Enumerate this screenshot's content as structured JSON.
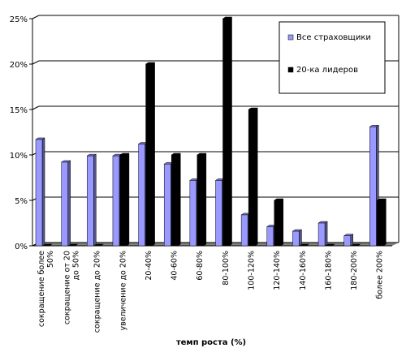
{
  "chart_data": {
    "type": "bar",
    "xlabel": "темп роста (%)",
    "ylabel": "",
    "ylim": [
      0,
      25
    ],
    "y_ticks": [
      "0%",
      "5%",
      "10%",
      "15%",
      "20%",
      "25%"
    ],
    "grid": true,
    "legend_position": "top-right",
    "categories": [
      [
        "сокращение более",
        "50%"
      ],
      [
        "сокращение от 20",
        "до 50%"
      ],
      [
        "сокращение до 20%"
      ],
      [
        "увеличение до 20%"
      ],
      [
        "20-40%"
      ],
      [
        "40-60%"
      ],
      [
        "60-80%"
      ],
      [
        "80-100%"
      ],
      [
        "100-120%"
      ],
      [
        "120-140%"
      ],
      [
        "140-160%"
      ],
      [
        "160-180%"
      ],
      [
        "180-200%"
      ],
      [
        "более 200%"
      ]
    ],
    "series": [
      {
        "name": "Все страховщики",
        "color": "#9999ff",
        "values": [
          11.7,
          9.2,
          9.9,
          9.9,
          11.2,
          9.0,
          7.2,
          7.2,
          3.4,
          2.1,
          1.6,
          2.5,
          1.1,
          13.1
        ]
      },
      {
        "name": "20-ка лидеров",
        "color": "#000000",
        "values": [
          0,
          0,
          0,
          10,
          20,
          10,
          10,
          25,
          15,
          5,
          0,
          0,
          0,
          5
        ]
      }
    ]
  }
}
